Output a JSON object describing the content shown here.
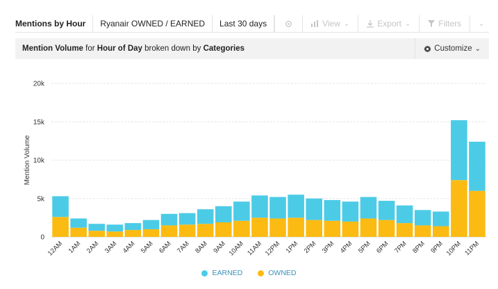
{
  "toolbar": {
    "title": "Mentions by Hour",
    "query": "Ryanair OWNED / EARNED",
    "range": "Last 30 days",
    "view_label": "View",
    "export_label": "Export",
    "filters_label": "Filters"
  },
  "subheader": {
    "metric": "Mention Volume",
    "for_text": "for",
    "dimension": "Hour of Day",
    "broken_text": "broken down by",
    "breakdown": "Categories",
    "customize_label": "Customize"
  },
  "colors": {
    "earned": "#4ccbe6",
    "owned": "#fcbb13",
    "grid": "#e6e6e6",
    "axis": "#cccccc"
  },
  "chart_data": {
    "type": "bar",
    "stacked": true,
    "ylabel": "Mention Volume",
    "xlabel": "",
    "ylim": [
      0,
      20000
    ],
    "yticks": [
      0,
      5000,
      10000,
      15000,
      20000
    ],
    "ytick_labels": [
      "0",
      "5k",
      "10k",
      "15k",
      "20k"
    ],
    "grid": true,
    "legend_position": "bottom",
    "categories": [
      "12AM",
      "1AM",
      "2AM",
      "3AM",
      "4AM",
      "5AM",
      "6AM",
      "7AM",
      "8AM",
      "9AM",
      "10AM",
      "11AM",
      "12PM",
      "1PM",
      "2PM",
      "3PM",
      "4PM",
      "5PM",
      "6PM",
      "7PM",
      "8PM",
      "9PM",
      "10PM",
      "11PM"
    ],
    "series": [
      {
        "name": "OWNED",
        "color_key": "owned",
        "values": [
          2600,
          1200,
          800,
          700,
          900,
          1000,
          1500,
          1600,
          1700,
          1900,
          2100,
          2500,
          2400,
          2500,
          2200,
          2100,
          2000,
          2400,
          2200,
          1800,
          1500,
          1400,
          7400,
          6000
        ]
      },
      {
        "name": "EARNED",
        "color_key": "earned",
        "values": [
          2700,
          1200,
          900,
          900,
          900,
          1200,
          1500,
          1500,
          1900,
          2100,
          2500,
          2900,
          2800,
          3000,
          2800,
          2700,
          2600,
          2800,
          2500,
          2300,
          2000,
          1900,
          7800,
          6400
        ]
      }
    ],
    "legend": [
      {
        "name": "EARNED",
        "color_key": "earned"
      },
      {
        "name": "OWNED",
        "color_key": "owned"
      }
    ]
  }
}
